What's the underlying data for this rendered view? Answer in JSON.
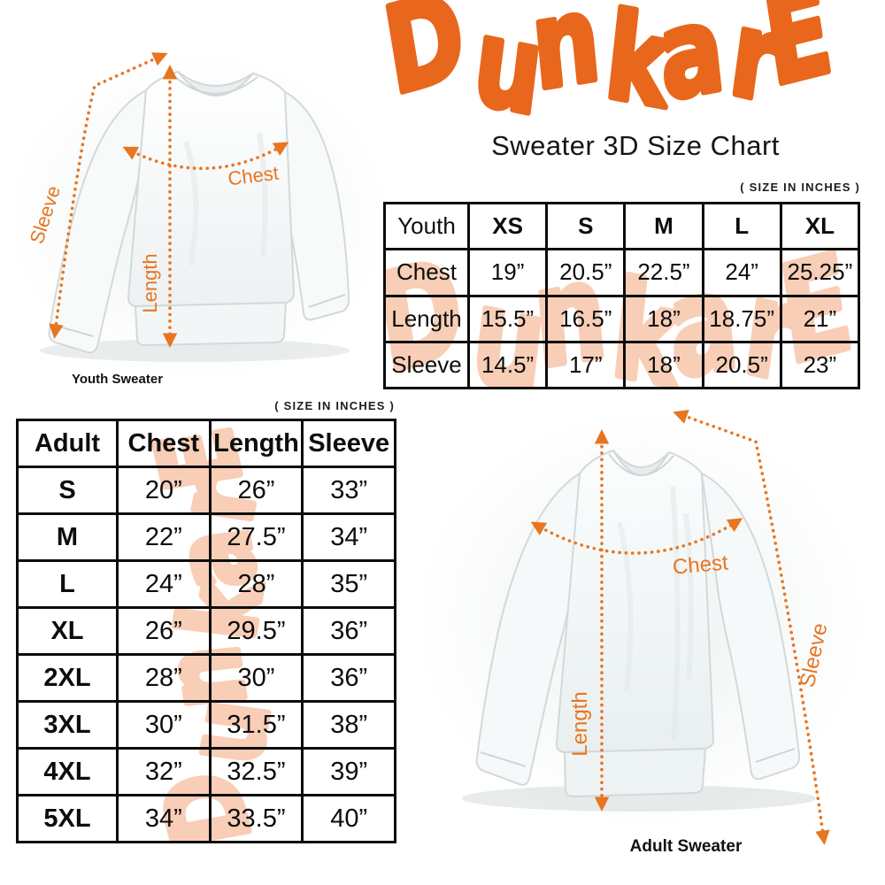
{
  "brand": {
    "name": "DunkarE",
    "logo_color": "#E8671C",
    "watermark_color": "#F8CEB6"
  },
  "header": {
    "subtitle": "Sweater 3D Size Chart"
  },
  "units_note": "( SIZE IN INCHES )",
  "arrow_color": "#E8751F",
  "youth_section": {
    "caption": "Youth Sweater",
    "measure_labels": {
      "chest": "Chest",
      "length": "Length",
      "sleeve": "Sleeve"
    },
    "table": {
      "header": [
        "Youth",
        "XS",
        "S",
        "M",
        "L",
        "XL"
      ],
      "rows": [
        {
          "label": "Chest",
          "values": [
            "19”",
            "20.5”",
            "22.5”",
            "24”",
            "25.25”"
          ]
        },
        {
          "label": "Length",
          "values": [
            "15.5”",
            "16.5”",
            "18”",
            "18.75”",
            "21”"
          ]
        },
        {
          "label": "Sleeve",
          "values": [
            "14.5”",
            "17”",
            "18”",
            "20.5”",
            "23”"
          ]
        }
      ]
    }
  },
  "adult_section": {
    "caption": "Adult Sweater",
    "measure_labels": {
      "chest": "Chest",
      "length": "Length",
      "sleeve": "Sleeve"
    },
    "table": {
      "header": [
        "Adult",
        "Chest",
        "Length",
        "Sleeve"
      ],
      "rows": [
        {
          "label": "S",
          "values": [
            "20”",
            "26”",
            "33”"
          ]
        },
        {
          "label": "M",
          "values": [
            "22”",
            "27.5”",
            "34”"
          ]
        },
        {
          "label": "L",
          "values": [
            "24”",
            "28”",
            "35”"
          ]
        },
        {
          "label": "XL",
          "values": [
            "26”",
            "29.5”",
            "36”"
          ]
        },
        {
          "label": "2XL",
          "values": [
            "28”",
            "30”",
            "36”"
          ]
        },
        {
          "label": "3XL",
          "values": [
            "30”",
            "31.5”",
            "38”"
          ]
        },
        {
          "label": "4XL",
          "values": [
            "32”",
            "32.5”",
            "39”"
          ]
        },
        {
          "label": "5XL",
          "values": [
            "34”",
            "33.5”",
            "40”"
          ]
        }
      ]
    }
  },
  "chart_data": [
    {
      "type": "table",
      "title": "Youth Sweater size chart (inches)",
      "columns": [
        "Youth",
        "XS",
        "S",
        "M",
        "L",
        "XL"
      ],
      "rows": [
        [
          "Chest",
          19,
          20.5,
          22.5,
          24,
          25.25
        ],
        [
          "Length",
          15.5,
          16.5,
          18,
          18.75,
          21
        ],
        [
          "Sleeve",
          14.5,
          17,
          18,
          20.5,
          23
        ]
      ]
    },
    {
      "type": "table",
      "title": "Adult Sweater size chart (inches)",
      "columns": [
        "Adult",
        "Chest",
        "Length",
        "Sleeve"
      ],
      "rows": [
        [
          "S",
          20,
          26,
          33
        ],
        [
          "M",
          22,
          27.5,
          34
        ],
        [
          "L",
          24,
          28,
          35
        ],
        [
          "XL",
          26,
          29.5,
          36
        ],
        [
          "2XL",
          28,
          30,
          36
        ],
        [
          "3XL",
          30,
          31.5,
          38
        ],
        [
          "4XL",
          32,
          32.5,
          39
        ],
        [
          "5XL",
          34,
          33.5,
          40
        ]
      ]
    }
  ]
}
